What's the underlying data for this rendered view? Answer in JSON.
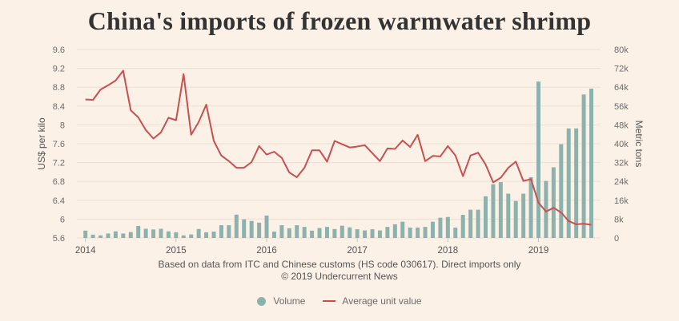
{
  "title": "China's imports of frozen warmwater shrimp",
  "colors": {
    "background": "#fcf1e7",
    "grid": "#eddfd3",
    "volume": "#8db2ad",
    "average_unit_value": "#c9504e"
  },
  "chart_data": {
    "type": "bar",
    "title": "China's imports of frozen warmwater shrimp",
    "xlabel": "",
    "ylabel_left": "US$ per kilo",
    "ylabel_right": "Metric tons",
    "ylim_left": [
      5.6,
      9.6
    ],
    "ylim_right": [
      0,
      80000
    ],
    "grid": true,
    "yticks_left": [
      {
        "value": 9.6,
        "label": "9.6"
      },
      {
        "value": 9.2,
        "label": "9.2"
      },
      {
        "value": 8.8,
        "label": "8.8"
      },
      {
        "value": 8.4,
        "label": "8.4"
      },
      {
        "value": 8.0,
        "label": "8"
      },
      {
        "value": 7.6,
        "label": "7.6"
      },
      {
        "value": 7.2,
        "label": "7.2"
      },
      {
        "value": 6.8,
        "label": "6.8"
      },
      {
        "value": 6.4,
        "label": "6.4"
      },
      {
        "value": 6.0,
        "label": "6"
      },
      {
        "value": 5.6,
        "label": "5.6"
      }
    ],
    "yticks_right": [
      {
        "value": 80000,
        "label": "80k"
      },
      {
        "value": 72000,
        "label": "72k"
      },
      {
        "value": 64000,
        "label": "64k"
      },
      {
        "value": 56000,
        "label": "56k"
      },
      {
        "value": 48000,
        "label": "48k"
      },
      {
        "value": 40000,
        "label": "40k"
      },
      {
        "value": 32000,
        "label": "32k"
      },
      {
        "value": 24000,
        "label": "24k"
      },
      {
        "value": 16000,
        "label": "16k"
      },
      {
        "value": 8000,
        "label": "8k"
      },
      {
        "value": 0,
        "label": "0"
      }
    ],
    "xticks": [
      {
        "index": 0,
        "label": "2014"
      },
      {
        "index": 12,
        "label": "2015"
      },
      {
        "index": 24,
        "label": "2016"
      },
      {
        "index": 36,
        "label": "2017"
      },
      {
        "index": 48,
        "label": "2018"
      },
      {
        "index": 60,
        "label": "2019"
      }
    ],
    "x": [
      "2014-01",
      "2014-02",
      "2014-03",
      "2014-04",
      "2014-05",
      "2014-06",
      "2014-07",
      "2014-08",
      "2014-09",
      "2014-10",
      "2014-11",
      "2014-12",
      "2015-01",
      "2015-02",
      "2015-03",
      "2015-04",
      "2015-05",
      "2015-06",
      "2015-07",
      "2015-08",
      "2015-09",
      "2015-10",
      "2015-11",
      "2015-12",
      "2016-01",
      "2016-02",
      "2016-03",
      "2016-04",
      "2016-05",
      "2016-06",
      "2016-07",
      "2016-08",
      "2016-09",
      "2016-10",
      "2016-11",
      "2016-12",
      "2017-01",
      "2017-02",
      "2017-03",
      "2017-04",
      "2017-05",
      "2017-06",
      "2017-07",
      "2017-08",
      "2017-09",
      "2017-10",
      "2017-11",
      "2017-12",
      "2018-01",
      "2018-02",
      "2018-03",
      "2018-04",
      "2018-05",
      "2018-06",
      "2018-07",
      "2018-08",
      "2018-09",
      "2018-10",
      "2018-11",
      "2018-12",
      "2019-01",
      "2019-02",
      "2019-03",
      "2019-04",
      "2019-05",
      "2019-06",
      "2019-07",
      "2019-08"
    ],
    "series": [
      {
        "name": "Volume",
        "type": "bar",
        "axis": "right",
        "unit": "metric tons",
        "values": [
          3100,
          1400,
          1100,
          1900,
          2800,
          1900,
          2500,
          5100,
          3900,
          3600,
          3900,
          2800,
          2400,
          1100,
          1500,
          3800,
          2400,
          2700,
          5400,
          5400,
          9900,
          7900,
          7200,
          6500,
          9500,
          2700,
          5400,
          4100,
          5400,
          4700,
          3100,
          4200,
          4700,
          3800,
          5200,
          4500,
          3700,
          3200,
          3700,
          3200,
          4700,
          5800,
          6900,
          4400,
          4400,
          4700,
          6900,
          8600,
          8900,
          4400,
          9800,
          12000,
          12000,
          17700,
          22800,
          23700,
          18800,
          15700,
          18800,
          25800,
          66400,
          24200,
          30000,
          39800,
          46500,
          46500,
          60900,
          63400
        ]
      },
      {
        "name": "Average unit value",
        "type": "line",
        "axis": "left",
        "unit": "US$ per kilo",
        "values": [
          8.54,
          8.53,
          8.75,
          8.84,
          8.94,
          9.15,
          8.31,
          8.16,
          7.89,
          7.71,
          7.84,
          8.15,
          8.1,
          9.08,
          7.79,
          8.06,
          8.43,
          7.66,
          7.35,
          7.23,
          7.09,
          7.09,
          7.21,
          7.55,
          7.37,
          7.43,
          7.3,
          6.99,
          6.89,
          7.09,
          7.46,
          7.46,
          7.22,
          7.66,
          7.59,
          7.52,
          7.54,
          7.57,
          7.4,
          7.23,
          7.5,
          7.49,
          7.67,
          7.53,
          7.79,
          7.23,
          7.34,
          7.33,
          7.55,
          7.35,
          6.91,
          7.35,
          7.41,
          7.16,
          6.78,
          6.88,
          7.09,
          7.22,
          6.81,
          6.85,
          6.35,
          6.16,
          6.24,
          6.14,
          5.96,
          5.89,
          5.9,
          5.88
        ]
      }
    ],
    "legend": {
      "position": "bottom",
      "entries": [
        {
          "label": "Volume",
          "symbol": "circle"
        },
        {
          "label": "Average unit value",
          "symbol": "line"
        }
      ]
    }
  },
  "footer": {
    "source": "Based on data from ITC and Chinese customs (HS code 030617). Direct imports only",
    "copyright": "© 2019 Undercurrent News"
  }
}
